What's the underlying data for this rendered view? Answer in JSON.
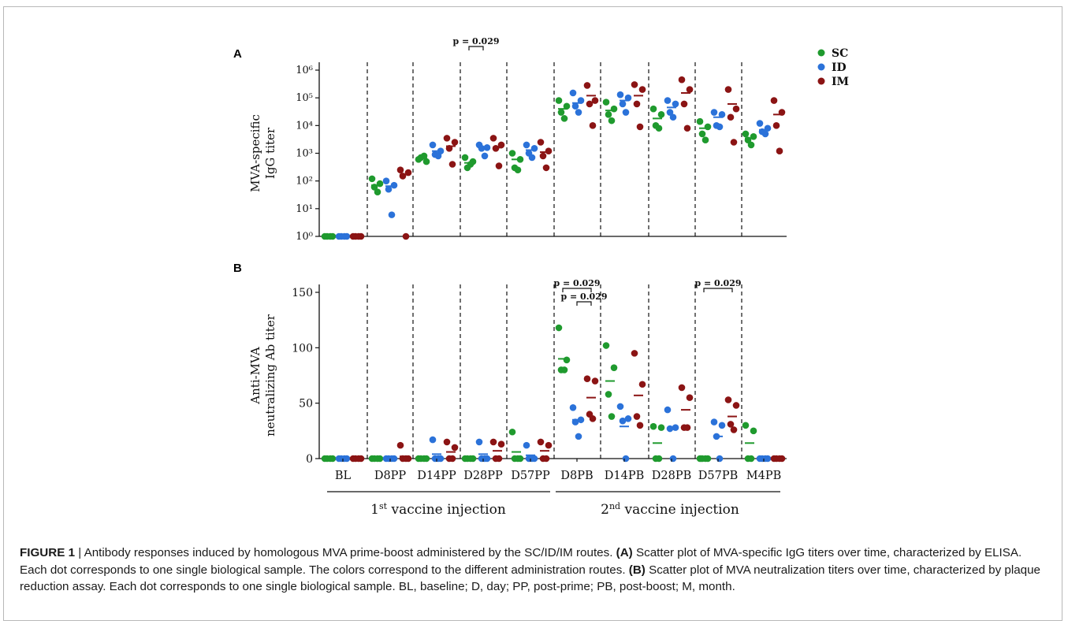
{
  "legend": [
    {
      "key": "SC",
      "color": "#1f9a2e"
    },
    {
      "key": "ID",
      "color": "#2b72d9"
    },
    {
      "key": "IM",
      "color": "#8b1414"
    }
  ],
  "chart_data": [
    {
      "panel": "A",
      "type": "scatter",
      "ylabel_line1": "MVA-specific",
      "ylabel_line2": "IgG titer",
      "yscale": "log",
      "ylim": [
        1,
        1000000
      ],
      "yticks": [
        "10⁰",
        "10¹",
        "10²",
        "10³",
        "10⁴",
        "10⁵",
        "10⁶"
      ],
      "categories": [
        "BL",
        "D8PP",
        "D14PP",
        "D28PP",
        "D57PP",
        "D8PB",
        "D14PB",
        "D28PB",
        "D57PB",
        "M4PB"
      ],
      "annotations": [
        {
          "text": "p = 0.029",
          "category": "D28PP",
          "between": [
            "SC",
            "ID"
          ]
        }
      ],
      "series": [
        {
          "name": "SC",
          "values": [
            [
              1,
              1,
              1,
              1
            ],
            [
              120,
              80,
              60,
              40
            ],
            [
              600,
              500,
              700,
              800
            ],
            [
              700,
              500,
              300,
              400
            ],
            [
              1000,
              600,
              300,
              250
            ],
            [
              80000,
              50000,
              30000,
              18000
            ],
            [
              70000,
              40000,
              25000,
              15000
            ],
            [
              40000,
              25000,
              10000,
              8000
            ],
            [
              14000,
              9000,
              5000,
              3000
            ],
            [
              5000,
              4000,
              3000,
              2000
            ]
          ],
          "medians": [
            1,
            70,
            650,
            450,
            600,
            40000,
            35000,
            18000,
            8000,
            3500
          ]
        },
        {
          "name": "ID",
          "values": [
            [
              1,
              1,
              1,
              1
            ],
            [
              100,
              70,
              50,
              6
            ],
            [
              2000,
              1200,
              900,
              800
            ],
            [
              2000,
              1600,
              1500,
              800
            ],
            [
              2000,
              1500,
              1000,
              700
            ],
            [
              150000,
              80000,
              50000,
              30000
            ],
            [
              130000,
              100000,
              60000,
              30000
            ],
            [
              80000,
              60000,
              30000,
              20000
            ],
            [
              30000,
              25000,
              10000,
              9000
            ],
            [
              12000,
              8000,
              6000,
              5000
            ]
          ],
          "medians": [
            1,
            65,
            1200,
            1600,
            1300,
            65000,
            80000,
            45000,
            20000,
            7000
          ]
        },
        {
          "name": "IM",
          "values": [
            [
              1,
              1,
              1,
              1
            ],
            [
              250,
              200,
              150,
              1
            ],
            [
              3500,
              2500,
              1500,
              400
            ],
            [
              3500,
              2000,
              1500,
              350
            ],
            [
              2500,
              1200,
              800,
              300
            ],
            [
              280000,
              80000,
              60000,
              10000
            ],
            [
              300000,
              200000,
              60000,
              9000
            ],
            [
              450000,
              200000,
              60000,
              8000
            ],
            [
              200000,
              40000,
              20000,
              2500
            ],
            [
              80000,
              30000,
              10000,
              1200
            ]
          ],
          "medians": [
            1,
            170,
            1800,
            1600,
            1100,
            120000,
            120000,
            150000,
            60000,
            25000
          ]
        }
      ]
    },
    {
      "panel": "B",
      "type": "scatter",
      "ylabel_line1": "Anti-MVA",
      "ylabel_line2": "neutralizing Ab titer",
      "ylim": [
        0,
        150
      ],
      "yticks": [
        0,
        50,
        100,
        150
      ],
      "categories": [
        "BL",
        "D8PP",
        "D14PP",
        "D28PP",
        "D57PP",
        "D8PB",
        "D14PB",
        "D28PB",
        "D57PB",
        "M4PB"
      ],
      "annotations": [
        {
          "text": "p = 0.029",
          "category": "D8PB",
          "between": [
            "SC",
            "IM"
          ]
        },
        {
          "text": "p = 0.029",
          "category": "D8PB",
          "between": [
            "ID",
            "IM"
          ]
        },
        {
          "text": "p = 0.029",
          "category": "D57PB",
          "between": [
            "SC",
            "IM"
          ]
        }
      ],
      "series": [
        {
          "name": "SC",
          "values": [
            [
              0,
              0,
              0,
              0
            ],
            [
              0,
              0,
              0,
              0
            ],
            [
              0,
              0,
              0,
              0
            ],
            [
              0,
              0,
              0,
              0
            ],
            [
              24,
              0,
              0,
              0
            ],
            [
              118,
              89,
              80,
              80
            ],
            [
              102,
              82,
              58,
              38
            ],
            [
              29,
              28,
              0,
              0
            ],
            [
              0,
              0,
              0,
              0
            ],
            [
              30,
              25,
              0,
              0
            ]
          ],
          "medians": [
            0,
            0,
            0,
            0,
            6,
            90,
            70,
            14,
            0,
            14
          ]
        },
        {
          "name": "ID",
          "values": [
            [
              0,
              0,
              0,
              0
            ],
            [
              0,
              0,
              0,
              0
            ],
            [
              17,
              0,
              0,
              0
            ],
            [
              15,
              0,
              0,
              0
            ],
            [
              12,
              0,
              0,
              0
            ],
            [
              46,
              35,
              33,
              20
            ],
            [
              47,
              36,
              34,
              0
            ],
            [
              44,
              28,
              27,
              0
            ],
            [
              33,
              30,
              20,
              0
            ],
            [
              0,
              0,
              0,
              0
            ]
          ],
          "medians": [
            0,
            0,
            4,
            4,
            3,
            35,
            29,
            27,
            20,
            0
          ]
        },
        {
          "name": "IM",
          "values": [
            [
              0,
              0,
              0,
              0
            ],
            [
              12,
              0,
              0,
              0
            ],
            [
              15,
              10,
              0,
              0
            ],
            [
              15,
              13,
              0,
              0
            ],
            [
              15,
              12,
              0,
              0
            ],
            [
              72,
              70,
              40,
              36
            ],
            [
              95,
              67,
              38,
              30
            ],
            [
              64,
              55,
              28,
              28
            ],
            [
              53,
              48,
              31,
              26
            ],
            [
              0,
              0,
              0,
              0
            ]
          ],
          "medians": [
            0,
            2,
            6,
            7,
            7,
            55,
            57,
            44,
            38,
            0
          ]
        }
      ]
    }
  ],
  "groups": [
    {
      "label": "1",
      "sup": "st",
      "rest": " vaccine injection"
    },
    {
      "label": "2",
      "sup": "nd",
      "rest": " vaccine injection"
    }
  ],
  "caption": {
    "lead": "FIGURE 1",
    "sep": " | Antibody responses induced by homologous MVA prime-boost administered by the SC/ID/IM routes. ",
    "a_tag": "(A)",
    "a_text": " Scatter plot of MVA-specific IgG titers over time, characterized by ELISA. Each dot corresponds to one single biological sample. The colors correspond to the different administration routes. ",
    "b_tag": "(B)",
    "b_text": " Scatter plot of MVA neutralization titers over time, characterized by plaque reduction assay. Each dot corresponds to one single biological sample. BL, baseline; D, day; PP, post-prime; PB, post-boost; M, month."
  }
}
